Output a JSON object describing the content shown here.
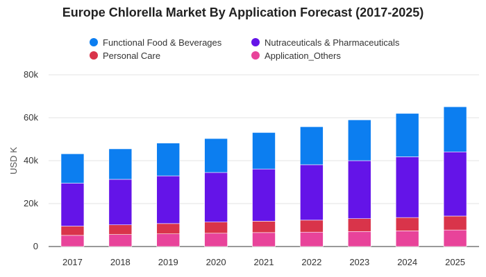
{
  "chart_data": {
    "type": "bar",
    "stacked": true,
    "title": "Europe Chlorella Market By Application Forecast (2017-2025)",
    "xlabel": "",
    "ylabel": "USD K",
    "ylim": [
      0,
      80000
    ],
    "yticks": [
      0,
      20000,
      40000,
      60000,
      80000
    ],
    "ytick_labels": [
      "0",
      "20k",
      "40k",
      "60k",
      "80k"
    ],
    "grid": true,
    "legend_position": "top",
    "categories": [
      "2017",
      "2018",
      "2019",
      "2020",
      "2021",
      "2022",
      "2023",
      "2024",
      "2025"
    ],
    "series": [
      {
        "name": "Application_Others",
        "color": "#e8439a",
        "values": [
          5200,
          5600,
          5900,
          6200,
          6500,
          6700,
          7000,
          7300,
          7700
        ]
      },
      {
        "name": "Personal Care",
        "color": "#d9344a",
        "values": [
          4300,
          4500,
          4800,
          5200,
          5300,
          5600,
          6000,
          6200,
          6500
        ]
      },
      {
        "name": "Nutraceuticals & Pharmaceuticals",
        "color": "#6414e8",
        "values": [
          20000,
          21200,
          22200,
          23100,
          24300,
          25800,
          27000,
          28300,
          29900
        ]
      },
      {
        "name": "Functional Food & Beverages",
        "color": "#0c7ef0",
        "values": [
          13700,
          14200,
          15300,
          15800,
          17000,
          17700,
          19000,
          20200,
          21000
        ]
      }
    ],
    "legend_order": [
      "Functional Food & Beverages",
      "Nutraceuticals & Pharmaceuticals",
      "Personal Care",
      "Application_Others"
    ]
  }
}
